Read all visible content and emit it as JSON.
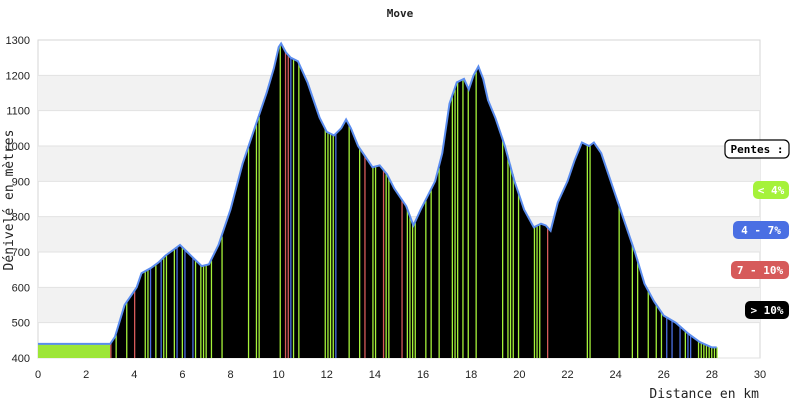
{
  "chart_data": {
    "type": "area",
    "title": "Move",
    "xlabel": "Distance en km",
    "ylabel": "Dénivelé en mètres",
    "xlim": [
      0,
      30
    ],
    "ylim": [
      400,
      1300
    ],
    "x_ticks": [
      0,
      2,
      4,
      6,
      8,
      10,
      12,
      14,
      16,
      18,
      20,
      22,
      24,
      26,
      28,
      30
    ],
    "y_ticks": [
      400,
      500,
      600,
      700,
      800,
      900,
      1000,
      1100,
      1200,
      1300
    ],
    "grid": "horizontal bands",
    "line_color": "#5b8def",
    "fill_color": "#000000",
    "series": [
      {
        "x": [
          0,
          3.0,
          3.2,
          3.6,
          3.9,
          4.1,
          4.3,
          4.7,
          5.0,
          5.3,
          5.7,
          5.9,
          6.2,
          6.5,
          6.8,
          7.1,
          7.5,
          8.0,
          8.5,
          9.0,
          9.5,
          9.8,
          10.0,
          10.1,
          10.3,
          10.5,
          10.8,
          11.2,
          11.7,
          12.0,
          12.3,
          12.6,
          12.8,
          13.0,
          13.3,
          13.6,
          13.9,
          14.2,
          14.5,
          14.8,
          15.0,
          15.3,
          15.6,
          15.9,
          16.2,
          16.5,
          16.8,
          17.1,
          17.4,
          17.7,
          17.9,
          18.1,
          18.3,
          18.5,
          18.7,
          19.0,
          19.4,
          19.8,
          20.2,
          20.6,
          20.9,
          21.1,
          21.3,
          21.6,
          22.0,
          22.3,
          22.6,
          22.9,
          23.1,
          23.4,
          23.7,
          24.0,
          24.4,
          24.8,
          25.2,
          25.6,
          26.0,
          26.5,
          27.0,
          27.5,
          28.0,
          28.2
        ],
        "y": [
          440,
          440,
          460,
          550,
          580,
          600,
          640,
          655,
          670,
          690,
          710,
          720,
          700,
          680,
          660,
          665,
          720,
          820,
          950,
          1050,
          1150,
          1220,
          1280,
          1290,
          1265,
          1250,
          1240,
          1180,
          1080,
          1040,
          1030,
          1050,
          1075,
          1050,
          1000,
          970,
          940,
          945,
          920,
          880,
          860,
          830,
          775,
          820,
          860,
          900,
          980,
          1120,
          1180,
          1190,
          1160,
          1200,
          1225,
          1190,
          1130,
          1080,
          1000,
          900,
          820,
          770,
          780,
          775,
          760,
          840,
          900,
          960,
          1010,
          1000,
          1010,
          980,
          920,
          860,
          780,
          700,
          610,
          560,
          520,
          500,
          470,
          445,
          430,
          430
        ]
      }
    ],
    "legend": {
      "title": "Pentes :",
      "placement": "right",
      "items": [
        {
          "label": "< 4%",
          "color": "#a5f23a",
          "text_color": "#ffffff"
        },
        {
          "label": "4 - 7%",
          "color": "#4a6fe3",
          "text_color": "#ffffff"
        },
        {
          "label": "7 - 10%",
          "color": "#d65a5a",
          "text_color": "#ffffff"
        },
        {
          "label": "> 10%",
          "color": "#000000",
          "text_color": "#ffffff"
        }
      ]
    }
  }
}
